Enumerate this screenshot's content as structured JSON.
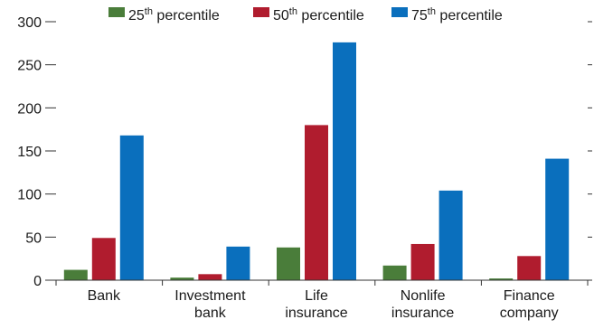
{
  "chart_data": {
    "type": "bar",
    "title": "",
    "xlabel": "",
    "ylabel": "",
    "ylim": [
      0,
      300
    ],
    "yticks": [
      0,
      50,
      100,
      150,
      200,
      250,
      300
    ],
    "grid": false,
    "legend_position": "top",
    "categories": [
      [
        "Bank"
      ],
      [
        "Investment",
        "bank"
      ],
      [
        "Life",
        "insurance"
      ],
      [
        "Nonlife",
        "insurance"
      ],
      [
        "Finance",
        "company"
      ]
    ],
    "series": [
      {
        "name": "25th percentile",
        "label_base": "25",
        "label_sup": "th",
        "label_rest": " percentile",
        "color": "#4a7d3a",
        "values": [
          12,
          3,
          38,
          17,
          2
        ]
      },
      {
        "name": "50th percentile",
        "label_base": "50",
        "label_sup": "th",
        "label_rest": " percentile",
        "color": "#b01c2e",
        "values": [
          49,
          7,
          180,
          42,
          28
        ]
      },
      {
        "name": "75th percentile",
        "label_base": "75",
        "label_sup": "th",
        "label_rest": " percentile",
        "color": "#0a6fbd",
        "values": [
          168,
          39,
          276,
          104,
          141
        ]
      }
    ]
  }
}
